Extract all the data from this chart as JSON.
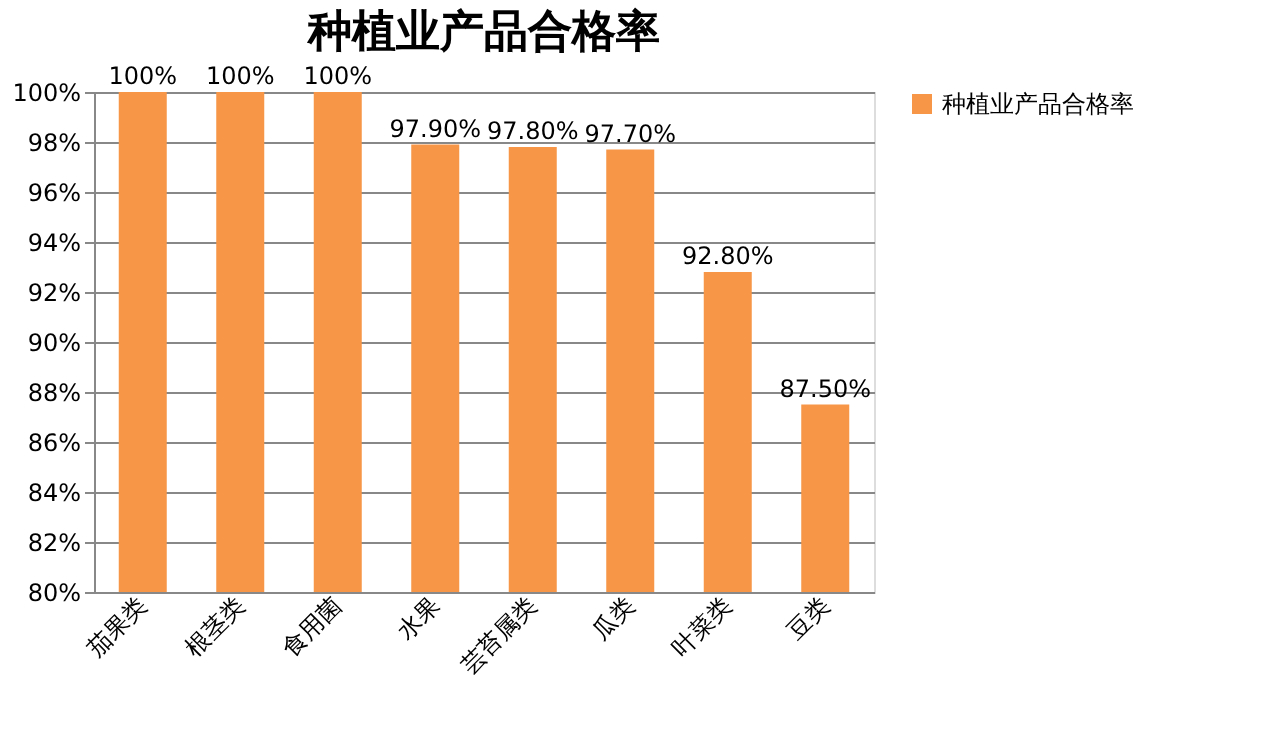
{
  "chart_data": {
    "type": "bar",
    "title": "种植业产品合格率",
    "categories": [
      "茄果类",
      "根茎类",
      "食用菌",
      "水果",
      "芸苔属类",
      "瓜类",
      "叶菜类",
      "豆类"
    ],
    "series": [
      {
        "name": "种植业产品合格率",
        "color": "#f79646",
        "values": [
          100,
          100,
          100,
          97.9,
          97.8,
          97.7,
          92.8,
          87.5
        ],
        "value_labels": [
          "100%",
          "100%",
          "100%",
          "97.90%",
          "97.80%",
          "97.70%",
          "92.80%",
          "87.50%"
        ]
      }
    ],
    "ylim": [
      80,
      100
    ],
    "yticks": [
      {
        "value": 80,
        "label": "80%"
      },
      {
        "value": 82,
        "label": "82%"
      },
      {
        "value": 84,
        "label": "84%"
      },
      {
        "value": 86,
        "label": "86%"
      },
      {
        "value": 88,
        "label": "88%"
      },
      {
        "value": 90,
        "label": "90%"
      },
      {
        "value": 92,
        "label": "92%"
      },
      {
        "value": 94,
        "label": "94%"
      },
      {
        "value": 96,
        "label": "96%"
      },
      {
        "value": 98,
        "label": "98%"
      },
      {
        "value": 100,
        "label": "100%"
      }
    ],
    "grid": "y",
    "legend": "right"
  }
}
